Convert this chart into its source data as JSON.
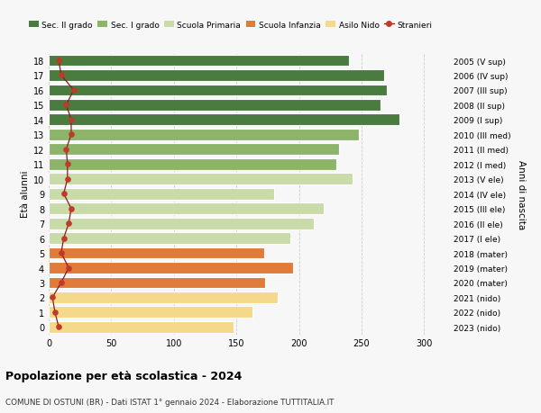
{
  "ages": [
    0,
    1,
    2,
    3,
    4,
    5,
    6,
    7,
    8,
    9,
    10,
    11,
    12,
    13,
    14,
    15,
    16,
    17,
    18
  ],
  "bar_values": [
    148,
    163,
    183,
    173,
    195,
    172,
    193,
    212,
    220,
    180,
    243,
    230,
    232,
    248,
    280,
    265,
    270,
    268,
    240
  ],
  "bar_colors": [
    "#f5d98b",
    "#f5d98b",
    "#f5d98b",
    "#e07b39",
    "#e07b39",
    "#e07b39",
    "#c8dba8",
    "#c8dba8",
    "#c8dba8",
    "#c8dba8",
    "#c8dba8",
    "#8db56a",
    "#8db56a",
    "#8db56a",
    "#4a7c3f",
    "#4a7c3f",
    "#4a7c3f",
    "#4a7c3f",
    "#4a7c3f"
  ],
  "stranieri_values": [
    8,
    5,
    3,
    10,
    16,
    10,
    12,
    16,
    18,
    12,
    15,
    15,
    14,
    18,
    18,
    14,
    20,
    10,
    8
  ],
  "right_labels": [
    "2023 (nido)",
    "2022 (nido)",
    "2021 (nido)",
    "2020 (mater)",
    "2019 (mater)",
    "2018 (mater)",
    "2017 (I ele)",
    "2016 (II ele)",
    "2015 (III ele)",
    "2014 (IV ele)",
    "2013 (V ele)",
    "2012 (I med)",
    "2011 (II med)",
    "2010 (III med)",
    "2009 (I sup)",
    "2008 (II sup)",
    "2007 (III sup)",
    "2006 (IV sup)",
    "2005 (V sup)"
  ],
  "title": "Popolazione per età scolastica - 2024",
  "subtitle": "COMUNE DI OSTUNI (BR) - Dati ISTAT 1° gennaio 2024 - Elaborazione TUTTITALIA.IT",
  "ylabel": "Età alunni",
  "ylabel2": "Anni di nascita",
  "xlim": [
    0,
    320
  ],
  "xticks": [
    0,
    50,
    100,
    150,
    200,
    250,
    300
  ],
  "legend_labels": [
    "Sec. II grado",
    "Sec. I grado",
    "Scuola Primaria",
    "Scuola Infanzia",
    "Asilo Nido",
    "Stranieri"
  ],
  "legend_colors": [
    "#4a7c3f",
    "#8db56a",
    "#c8dba8",
    "#e07b39",
    "#f5d98b",
    "#c0392b"
  ],
  "bg_color": "#f7f7f7",
  "bar_height": 0.78
}
